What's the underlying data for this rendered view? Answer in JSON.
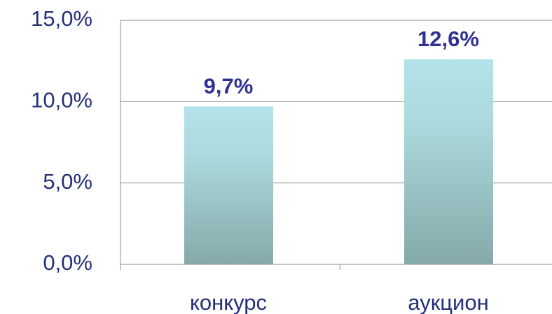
{
  "chart_data": {
    "type": "bar",
    "categories": [
      "конкурс",
      "аукцион"
    ],
    "values": [
      9.7,
      12.6
    ],
    "value_labels": [
      "9,7%",
      "12,6%"
    ],
    "ylim": [
      0,
      15
    ],
    "yticks": [
      {
        "value": 0,
        "label": "0,0%"
      },
      {
        "value": 5,
        "label": "5,0%"
      },
      {
        "value": 10,
        "label": "10,0%"
      },
      {
        "value": 15,
        "label": "15,0%"
      }
    ],
    "grid": true
  }
}
